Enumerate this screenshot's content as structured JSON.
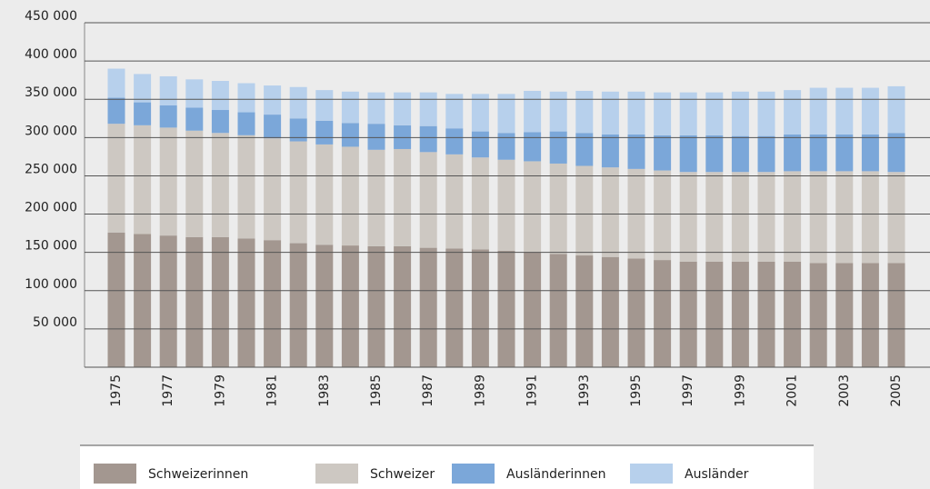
{
  "chart_data": {
    "type": "stacked_bar",
    "categories": [
      "1975",
      null,
      "1977",
      null,
      "1979",
      null,
      "1981",
      null,
      "1983",
      null,
      "1985",
      null,
      "1987",
      null,
      "1989",
      null,
      "1991",
      null,
      "1993",
      null,
      "1995",
      null,
      "1997",
      null,
      "1999",
      null,
      "2001",
      null,
      "2003",
      null,
      "2005"
    ],
    "series": [
      {
        "name": "Schweizerinnen",
        "color": "#a39790",
        "values": [
          176000,
          174000,
          172000,
          170000,
          170000,
          168000,
          166000,
          162000,
          160000,
          159000,
          158000,
          158000,
          156000,
          155000,
          154000,
          152000,
          150000,
          148000,
          146000,
          144000,
          142000,
          140000,
          138000,
          138000,
          138000,
          138000,
          138000,
          136000,
          136000,
          136000,
          136000
        ]
      },
      {
        "name": "Schweizer",
        "color": "#cdc8c2",
        "values": [
          142000,
          142000,
          141000,
          139000,
          136000,
          135000,
          133000,
          133000,
          131000,
          129000,
          126000,
          127000,
          125000,
          123000,
          120000,
          119000,
          119000,
          118000,
          117000,
          117000,
          117000,
          117000,
          117000,
          117000,
          117000,
          117000,
          118000,
          120000,
          120000,
          120000,
          119000
        ]
      },
      {
        "name": "Ausländerinnen",
        "color": "#7ba7d9",
        "values": [
          34000,
          30000,
          29000,
          30000,
          30000,
          30000,
          31000,
          30000,
          31000,
          31000,
          34000,
          31000,
          34000,
          34000,
          34000,
          35000,
          38000,
          42000,
          43000,
          43000,
          45000,
          46000,
          48000,
          48000,
          47000,
          47000,
          48000,
          48000,
          48000,
          48000,
          51000
        ]
      },
      {
        "name": "Ausländer",
        "color": "#b7d0ec",
        "values": [
          38000,
          37000,
          38000,
          37000,
          38000,
          38000,
          38000,
          41000,
          40000,
          41000,
          41000,
          43000,
          44000,
          45000,
          49000,
          51000,
          54000,
          52000,
          55000,
          56000,
          56000,
          56000,
          56000,
          56000,
          58000,
          58000,
          58000,
          61000,
          61000,
          61000,
          61000
        ]
      }
    ],
    "ylim": [
      0,
      450000
    ],
    "yticks": [
      {
        "value": 50000,
        "label": "50 000"
      },
      {
        "value": 100000,
        "label": "100 000"
      },
      {
        "value": 150000,
        "label": "150 000"
      },
      {
        "value": 200000,
        "label": "200 000"
      },
      {
        "value": 250000,
        "label": "250 000"
      },
      {
        "value": 300000,
        "label": "300 000"
      },
      {
        "value": 350000,
        "label": "350 000"
      },
      {
        "value": 400000,
        "label": "400 000"
      },
      {
        "value": 450000,
        "label": "450 000"
      }
    ],
    "grid": true,
    "legend": "bottom"
  }
}
